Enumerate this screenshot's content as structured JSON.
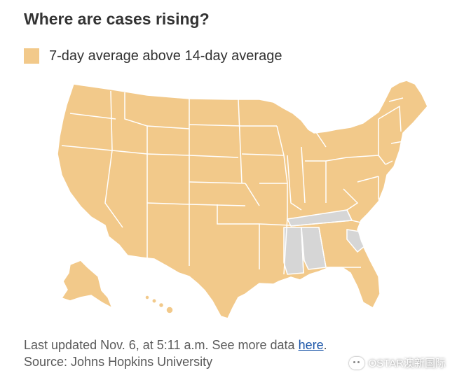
{
  "title": "Where are cases rising?",
  "legend": {
    "label": "7-day average above 14-day average",
    "color": "#f2c98a"
  },
  "map": {
    "rising_color": "#f2c98a",
    "not_rising_color": "#d6d6d6",
    "border_color": "#ffffff",
    "states_not_rising": [
      "Mississippi",
      "Alabama",
      "Tennessee",
      "South Carolina"
    ]
  },
  "footer": {
    "updated_prefix": "Last updated Nov. 6, at 5:11 a.m. See more data ",
    "link_text": "here",
    "updated_suffix": ".",
    "source": "Source: Johns Hopkins University"
  },
  "watermark": {
    "text": "OSTAR澳新国际"
  }
}
